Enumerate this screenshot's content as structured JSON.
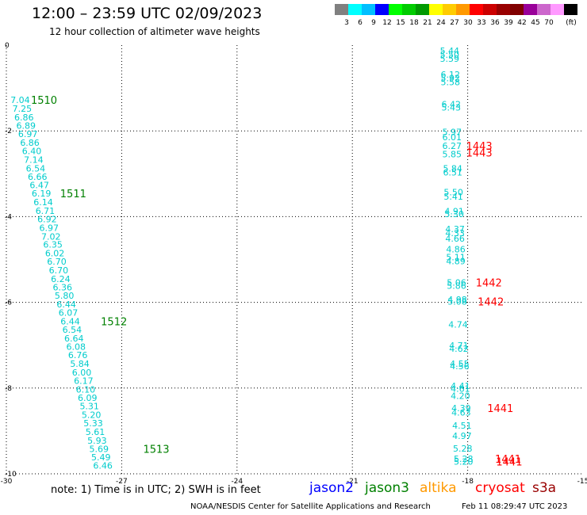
{
  "title": "12:00 – 23:59 UTC 02/09/2023",
  "subtitle": "12 hour collection of altimeter wave heights",
  "colorbar": {
    "colors": [
      "#808080",
      "#00ffff",
      "#00bfff",
      "#0000ff",
      "#00ff00",
      "#00cc00",
      "#009900",
      "#ffff00",
      "#ffcc00",
      "#ff9900",
      "#ff0000",
      "#cc0000",
      "#990000",
      "#800000",
      "#990099",
      "#cc66cc",
      "#ff99ff",
      "#000000"
    ],
    "ticks": [
      "3",
      "6",
      "9",
      "12",
      "15",
      "18",
      "21",
      "24",
      "27",
      "30",
      "33",
      "36",
      "39",
      "42",
      "45",
      "70"
    ],
    "unit": "(ft)"
  },
  "note": "note: 1) Time is in UTC; 2) SWH is in feet",
  "satellites": [
    {
      "name": "jason2",
      "color": "#0000ff"
    },
    {
      "name": "jason3",
      "color": "#008000"
    },
    {
      "name": "altika",
      "color": "#ff9900"
    },
    {
      "name": "cryosat",
      "color": "#ff0000"
    },
    {
      "name": "s3a",
      "color": "#990000"
    }
  ],
  "credit": "NOAA/NESDIS Center for Satellite Applications and Research",
  "timestamp": "Feb 11 08:29:47 UTC 2023",
  "chart_data": {
    "type": "scatter",
    "xlim": [
      -30,
      -15
    ],
    "ylim": [
      -10,
      0
    ],
    "xticks": [
      "-30",
      "-27",
      "-24",
      "-21",
      "-18",
      "-15"
    ],
    "yticks": [
      "0",
      "-2",
      "-4",
      "-6",
      "-8",
      "-10"
    ],
    "grid": true,
    "series": [
      {
        "name": "jason3",
        "color": "#00cccc",
        "label_color": "#008000",
        "points": [
          {
            "x": -29.64,
            "y": -1.28,
            "v": "7.04"
          },
          {
            "x": -29.59,
            "y": -1.48,
            "v": "7.25"
          },
          {
            "x": -29.54,
            "y": -1.68,
            "v": "6.86"
          },
          {
            "x": -29.49,
            "y": -1.88,
            "v": "6.89"
          },
          {
            "x": -29.44,
            "y": -2.07,
            "v": "6.97"
          },
          {
            "x": -29.39,
            "y": -2.27,
            "v": "6.86"
          },
          {
            "x": -29.34,
            "y": -2.47,
            "v": "6.40"
          },
          {
            "x": -29.29,
            "y": -2.67,
            "v": "7.14"
          },
          {
            "x": -29.24,
            "y": -2.87,
            "v": "6.54"
          },
          {
            "x": -29.19,
            "y": -3.07,
            "v": "6.66"
          },
          {
            "x": -29.14,
            "y": -3.26,
            "v": "6.47"
          },
          {
            "x": -29.09,
            "y": -3.46,
            "v": "6.19"
          },
          {
            "x": -29.04,
            "y": -3.66,
            "v": "6.14"
          },
          {
            "x": -28.99,
            "y": -3.86,
            "v": "6.71"
          },
          {
            "x": -28.94,
            "y": -4.06,
            "v": "6.92"
          },
          {
            "x": -28.89,
            "y": -4.26,
            "v": "6.97"
          },
          {
            "x": -28.84,
            "y": -4.46,
            "v": "7.02"
          },
          {
            "x": -28.79,
            "y": -4.65,
            "v": "6.35"
          },
          {
            "x": -28.74,
            "y": -4.85,
            "v": "6.02"
          },
          {
            "x": -28.69,
            "y": -5.05,
            "v": "6.70"
          },
          {
            "x": -28.64,
            "y": -5.25,
            "v": "6.70"
          },
          {
            "x": -28.59,
            "y": -5.45,
            "v": "6.24"
          },
          {
            "x": -28.54,
            "y": -5.65,
            "v": "6.36"
          },
          {
            "x": -28.49,
            "y": -5.84,
            "v": "5.80"
          },
          {
            "x": -28.44,
            "y": -6.04,
            "v": "6.44"
          },
          {
            "x": -28.39,
            "y": -6.24,
            "v": "6.07"
          },
          {
            "x": -28.34,
            "y": -6.44,
            "v": "6.44"
          },
          {
            "x": -28.29,
            "y": -6.64,
            "v": "6.54"
          },
          {
            "x": -28.24,
            "y": -6.84,
            "v": "6.64"
          },
          {
            "x": -28.19,
            "y": -7.03,
            "v": "6.08"
          },
          {
            "x": -28.14,
            "y": -7.23,
            "v": "6.76"
          },
          {
            "x": -28.09,
            "y": -7.43,
            "v": "5.84"
          },
          {
            "x": -28.04,
            "y": -7.63,
            "v": "6.00"
          },
          {
            "x": -27.99,
            "y": -7.83,
            "v": "6.17"
          },
          {
            "x": -27.94,
            "y": -8.03,
            "v": "6.10"
          },
          {
            "x": -27.89,
            "y": -8.23,
            "v": "6.09"
          },
          {
            "x": -27.84,
            "y": -8.42,
            "v": "5.31"
          },
          {
            "x": -27.79,
            "y": -8.62,
            "v": "5.20"
          },
          {
            "x": -27.74,
            "y": -8.82,
            "v": "5.33"
          },
          {
            "x": -27.69,
            "y": -9.02,
            "v": "5.61"
          },
          {
            "x": -27.64,
            "y": -9.22,
            "v": "5.93"
          },
          {
            "x": -27.59,
            "y": -9.42,
            "v": "5.69"
          },
          {
            "x": -27.54,
            "y": -9.61,
            "v": "5.49"
          },
          {
            "x": -27.49,
            "y": -9.81,
            "v": "6.46"
          }
        ],
        "time_labels": [
          {
            "x": -29.02,
            "y": -1.28,
            "t": "1510"
          },
          {
            "x": -28.26,
            "y": -3.46,
            "t": "1511"
          },
          {
            "x": -27.2,
            "y": -6.44,
            "t": "1512"
          },
          {
            "x": -26.1,
            "y": -9.42,
            "t": "1513"
          }
        ]
      },
      {
        "name": "cryosat",
        "color": "#00cccc",
        "label_color": "#ff0000",
        "points": [
          {
            "x": -18.47,
            "y": -0.13,
            "v": "5.44"
          },
          {
            "x": -18.47,
            "y": -0.22,
            "v": "5.50"
          },
          {
            "x": -18.47,
            "y": -0.31,
            "v": "5.59"
          },
          {
            "x": -18.45,
            "y": -0.68,
            "v": "6.12"
          },
          {
            "x": -18.45,
            "y": -0.77,
            "v": "5.92"
          },
          {
            "x": -18.45,
            "y": -0.86,
            "v": "5.58"
          },
          {
            "x": -18.43,
            "y": -1.38,
            "v": "6.42"
          },
          {
            "x": -18.43,
            "y": -1.45,
            "v": "5.43"
          },
          {
            "x": -18.41,
            "y": -2.02,
            "v": "5.97"
          },
          {
            "x": -18.41,
            "y": -2.14,
            "v": "6.01"
          },
          {
            "x": -18.41,
            "y": -2.35,
            "v": "6.27"
          },
          {
            "x": -18.41,
            "y": -2.54,
            "v": "5.85"
          },
          {
            "x": -18.39,
            "y": -2.87,
            "v": "5.84"
          },
          {
            "x": -18.39,
            "y": -2.97,
            "v": "6.51"
          },
          {
            "x": -18.37,
            "y": -3.43,
            "v": "5.50"
          },
          {
            "x": -18.37,
            "y": -3.53,
            "v": "5.41"
          },
          {
            "x": -18.35,
            "y": -3.87,
            "v": "4.91"
          },
          {
            "x": -18.35,
            "y": -3.94,
            "v": "5.30"
          },
          {
            "x": -18.33,
            "y": -4.29,
            "v": "4.37"
          },
          {
            "x": -18.33,
            "y": -4.38,
            "v": "4.33"
          },
          {
            "x": -18.33,
            "y": -4.51,
            "v": "4.66"
          },
          {
            "x": -18.31,
            "y": -4.76,
            "v": "4.86"
          },
          {
            "x": -18.31,
            "y": -4.94,
            "v": "5.11"
          },
          {
            "x": -18.31,
            "y": -5.04,
            "v": "4.89"
          },
          {
            "x": -18.29,
            "y": -5.54,
            "v": "5.06"
          },
          {
            "x": -18.29,
            "y": -5.61,
            "v": "5.86"
          },
          {
            "x": -18.27,
            "y": -5.93,
            "v": "4.98"
          },
          {
            "x": -18.27,
            "y": -5.98,
            "v": "5.08"
          },
          {
            "x": -18.25,
            "y": -6.52,
            "v": "4.74"
          },
          {
            "x": -18.23,
            "y": -7.01,
            "v": "4.71"
          },
          {
            "x": -18.23,
            "y": -7.08,
            "v": "4.62"
          },
          {
            "x": -18.21,
            "y": -7.43,
            "v": "4.55"
          },
          {
            "x": -18.21,
            "y": -7.49,
            "v": "4.56"
          },
          {
            "x": -18.19,
            "y": -7.95,
            "v": "4.41"
          },
          {
            "x": -18.19,
            "y": -8.01,
            "v": "4.61"
          },
          {
            "x": -18.19,
            "y": -8.18,
            "v": "4.20"
          },
          {
            "x": -18.17,
            "y": -8.47,
            "v": "4.39"
          },
          {
            "x": -18.17,
            "y": -8.57,
            "v": "4.63"
          },
          {
            "x": -18.15,
            "y": -8.87,
            "v": "4.51"
          },
          {
            "x": -18.15,
            "y": -9.11,
            "v": "4.97"
          },
          {
            "x": -18.13,
            "y": -9.41,
            "v": "5.28"
          },
          {
            "x": -18.11,
            "y": -9.65,
            "v": "5.28"
          },
          {
            "x": -18.11,
            "y": -9.71,
            "v": "5.20"
          }
        ],
        "time_labels": [
          {
            "x": -17.7,
            "y": -2.35,
            "t": "1443"
          },
          {
            "x": -17.7,
            "y": -2.5,
            "t": "1443"
          },
          {
            "x": -17.45,
            "y": -5.54,
            "t": "1442"
          },
          {
            "x": -17.4,
            "y": -5.98,
            "t": "1442"
          },
          {
            "x": -17.15,
            "y": -8.47,
            "t": "1441"
          },
          {
            "x": -16.95,
            "y": -9.65,
            "t": "1441"
          },
          {
            "x": -16.92,
            "y": -9.71,
            "t": "1441"
          }
        ]
      }
    ]
  }
}
